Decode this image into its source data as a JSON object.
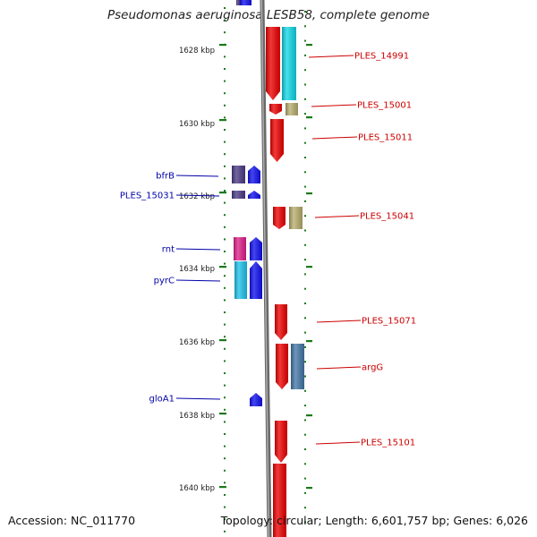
{
  "title": "Pseudomonas aeruginosa LESB58, complete genome",
  "accession": "Accession: NC_011770",
  "topology": "Topology: circular; Length: 6,601,757 bp; Genes: 6,026",
  "colors": {
    "red": "#ee0000",
    "cyan": "#11d8e8",
    "khaki": "#b8ae6e",
    "navy": "#4a3a86",
    "blue": "#1010f0",
    "magenta": "#e0208a",
    "skyblue": "#1ec4ec",
    "steel": "#4478a8",
    "tick": "#1a7a1a",
    "red_label": "#cc0000",
    "blue_label": "#0000aa"
  },
  "scale_labels": [
    {
      "kbp": 1628,
      "label": "1628 kbp"
    },
    {
      "kbp": 1630,
      "label": "1630 kbp"
    },
    {
      "kbp": 1632,
      "label": "1632 kbp"
    },
    {
      "kbp": 1634,
      "label": "1634 kbp"
    },
    {
      "kbp": 1636,
      "label": "1636 kbp"
    },
    {
      "kbp": 1638,
      "label": "1638 kbp"
    },
    {
      "kbp": 1640,
      "label": "1640 kbp"
    }
  ],
  "genes_right": [
    {
      "label": "PLES_14991",
      "color": "red"
    },
    {
      "label": "PLES_15001",
      "color": "red"
    },
    {
      "label": "PLES_15011",
      "color": "red"
    },
    {
      "label": "PLES_15041",
      "color": "red"
    },
    {
      "label": "PLES_15071",
      "color": "red"
    },
    {
      "label": "argG",
      "color": "red"
    },
    {
      "label": "PLES_15101",
      "color": "red"
    }
  ],
  "genes_left": [
    {
      "label": "bfrB",
      "color": "blue"
    },
    {
      "label": "PLES_15031",
      "color": "blue"
    },
    {
      "label": "rnt",
      "color": "blue"
    },
    {
      "label": "pyrC",
      "color": "blue"
    },
    {
      "label": "gloA1",
      "color": "blue"
    }
  ]
}
